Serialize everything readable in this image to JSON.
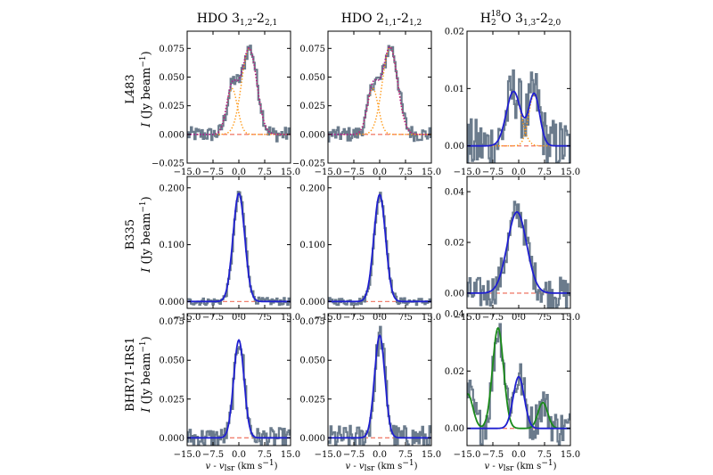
{
  "colors": {
    "data": "#6b7b8c",
    "fit": "#1f1fd0",
    "component": "#ff9a1a",
    "alt_fit": "#1a8a1a",
    "baseline": "#f08070",
    "dotted_total": "#b0188a"
  },
  "columns": [
    {
      "main": "HDO 3",
      "sub1": "1,2",
      "dash": "-2",
      "sub2": "2,1"
    },
    {
      "main": "HDO 2",
      "sub1": "1,1",
      "dash": "-2",
      "sub2": "1,2"
    },
    {
      "pre": "H",
      "sub0": "2",
      "sup0": "18",
      "main": "O 3",
      "sub1": "1,3",
      "dash": "-2",
      "sub2": "2,0"
    }
  ],
  "rows": [
    {
      "source": "L483",
      "ylabel_i": "I",
      "ylabel_unit": " (Jy beam",
      "ylabel_sup": "−1",
      "ylabel_close": ")"
    },
    {
      "source": "B335",
      "ylabel_i": "I",
      "ylabel_unit": " (Jy beam",
      "ylabel_sup": "−1",
      "ylabel_close": ")"
    },
    {
      "source": "BHR71-IRS1",
      "ylabel_i": "I",
      "ylabel_unit": " (Jy beam",
      "ylabel_sup": "−1",
      "ylabel_close": ")"
    }
  ],
  "xaxis": {
    "label_v": "v",
    "label_dash": " - ",
    "label_vlsr": "v",
    "label_lsr_sub": "lsr",
    "label_units": " (km s",
    "label_units_sup": "−1",
    "label_close": ")",
    "ticks": [
      "−15.0",
      "−7.5",
      "0.0",
      "7.5",
      "15.0"
    ],
    "xlim": [
      -15,
      15
    ]
  },
  "chart_data": [
    {
      "id": "L483-HDO312",
      "type": "line",
      "ylim": [
        -0.025,
        0.09
      ],
      "yticks": [
        "0.000",
        "0.025",
        "0.050",
        "0.075",
        "−0.025"
      ],
      "ytickvals": [
        0,
        0.025,
        0.05,
        0.075,
        -0.025
      ],
      "show_ytick_labels": true,
      "components": [
        {
          "amp": 0.04,
          "mu": -2.0,
          "sigma": 1.6
        },
        {
          "amp": 0.075,
          "mu": 3.0,
          "sigma": 2.2
        }
      ],
      "fit_style": "dotted",
      "noise": 0.004
    },
    {
      "id": "L483-HDO211",
      "type": "line",
      "ylim": [
        -0.025,
        0.09
      ],
      "yticks": [
        "0.000",
        "0.025",
        "0.050",
        "0.075",
        "−0.025"
      ],
      "ytickvals": [
        0,
        0.025,
        0.05,
        0.075,
        -0.025
      ],
      "show_ytick_labels": true,
      "components": [
        {
          "amp": 0.04,
          "mu": -2.0,
          "sigma": 1.6
        },
        {
          "amp": 0.076,
          "mu": 3.0,
          "sigma": 2.2
        }
      ],
      "fit_style": "dotted",
      "noise": 0.004
    },
    {
      "id": "L483-H218O",
      "type": "line",
      "ylim": [
        -0.003,
        0.02
      ],
      "yticks": [
        "0.00",
        "0.01",
        "0.02"
      ],
      "ytickvals": [
        0,
        0.01,
        0.02
      ],
      "show_ytick_labels": true,
      "components": [
        {
          "amp": 0.0095,
          "mu": -1.5,
          "sigma": 2.1
        },
        {
          "amp": 0.009,
          "mu": 4.5,
          "sigma": 1.6
        }
      ],
      "fit_style": "solid",
      "noise": 0.003
    },
    {
      "id": "B335-HDO312",
      "type": "line",
      "ylim": [
        -0.012,
        0.22
      ],
      "yticks": [
        "0.000",
        "0.100",
        "0.200"
      ],
      "ytickvals": [
        0,
        0.1,
        0.2
      ],
      "show_ytick_labels": true,
      "components": [
        {
          "amp": 0.19,
          "mu": 0.0,
          "sigma": 1.7
        }
      ],
      "fit_style": "solid",
      "noise": 0.004
    },
    {
      "id": "B335-HDO211",
      "type": "line",
      "ylim": [
        -0.012,
        0.22
      ],
      "yticks": [
        "0.000",
        "0.100",
        "0.200"
      ],
      "ytickvals": [
        0,
        0.1,
        0.2
      ],
      "show_ytick_labels": true,
      "components": [
        {
          "amp": 0.188,
          "mu": 0.0,
          "sigma": 1.7
        }
      ],
      "fit_style": "solid",
      "noise": 0.004
    },
    {
      "id": "B335-H218O",
      "type": "line",
      "ylim": [
        -0.006,
        0.046
      ],
      "yticks": [
        "0.00",
        "0.02",
        "0.04"
      ],
      "ytickvals": [
        0,
        0.02,
        0.04
      ],
      "show_ytick_labels": true,
      "components": [
        {
          "amp": 0.032,
          "mu": -0.5,
          "sigma": 2.8
        }
      ],
      "fit_style": "solid",
      "noise": 0.004
    },
    {
      "id": "BHR71-HDO312",
      "type": "line",
      "ylim": [
        -0.005,
        0.08
      ],
      "yticks": [
        "0.000",
        "0.025",
        "0.050",
        "0.075"
      ],
      "ytickvals": [
        0,
        0.025,
        0.05,
        0.075
      ],
      "show_ytick_labels": true,
      "components": [
        {
          "amp": 0.063,
          "mu": 0.0,
          "sigma": 1.5
        }
      ],
      "fit_style": "solid",
      "noise": 0.004
    },
    {
      "id": "BHR71-HDO211",
      "type": "line",
      "ylim": [
        -0.005,
        0.08
      ],
      "yticks": [
        "0.000",
        "0.025",
        "0.050",
        "0.075"
      ],
      "ytickvals": [
        0,
        0.025,
        0.05,
        0.075
      ],
      "show_ytick_labels": true,
      "components": [
        {
          "amp": 0.066,
          "mu": 0.0,
          "sigma": 1.5
        }
      ],
      "fit_style": "solid",
      "noise": 0.005
    },
    {
      "id": "BHR71-H218O",
      "type": "line",
      "ylim": [
        -0.006,
        0.04
      ],
      "yticks": [
        "0.00",
        "0.02",
        "0.04"
      ],
      "ytickvals": [
        0,
        0.02,
        0.04
      ],
      "show_ytick_labels": true,
      "components": [
        {
          "amp": 0.018,
          "mu": 0.0,
          "sigma": 1.6
        }
      ],
      "extra_components": [
        {
          "amp": 0.035,
          "mu": -6.0,
          "sigma": 1.6
        },
        {
          "amp": 0.009,
          "mu": 7.0,
          "sigma": 1.4
        },
        {
          "amp": 0.012,
          "mu": -14.8,
          "sigma": 1.5
        }
      ],
      "fit_style": "solid",
      "noise": 0.004
    }
  ]
}
